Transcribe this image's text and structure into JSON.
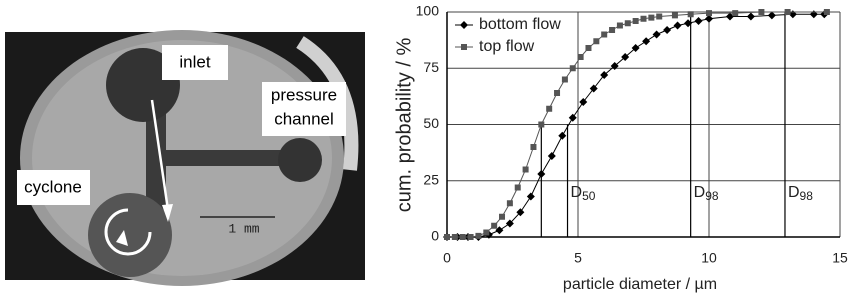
{
  "figure": {
    "labels": [
      "inlet",
      "pressure",
      "channel",
      "cyclone"
    ],
    "scale_bar": "1 mm"
  },
  "chart_data": {
    "type": "line",
    "y_label": "cum. probability / %",
    "x_label": "particle diameter / µm",
    "xlim": [
      0,
      15
    ],
    "xticks": [
      0,
      5,
      10,
      15
    ],
    "ylim": [
      0,
      100
    ],
    "yticks": [
      0,
      25,
      50,
      75,
      100
    ],
    "grid": true,
    "legend": "top-left",
    "series": [
      {
        "name": "bottom flow",
        "color": "#000000",
        "marker": "diamond",
        "x": [
          0,
          0.4,
          0.8,
          1.2,
          1.6,
          2.0,
          2.4,
          2.8,
          3.2,
          3.6,
          4.0,
          4.4,
          4.8,
          5.2,
          5.6,
          6.0,
          6.4,
          6.8,
          7.2,
          7.6,
          8.0,
          8.4,
          8.8,
          9.2,
          9.6,
          10.0,
          10.8,
          11.6,
          12.4,
          13.2,
          14.0,
          14.4
        ],
        "values": [
          0,
          0,
          0,
          0,
          1,
          3,
          6,
          11,
          18,
          28,
          36,
          45,
          53,
          60,
          66,
          72,
          76,
          80,
          84,
          87,
          90,
          92,
          94,
          95,
          96,
          97,
          98,
          98,
          98.5,
          99,
          99,
          99
        ]
      },
      {
        "name": "top flow",
        "color": "#555555",
        "marker": "square",
        "x": [
          0,
          0.3,
          0.6,
          0.9,
          1.2,
          1.5,
          1.8,
          2.1,
          2.4,
          2.7,
          3.0,
          3.3,
          3.6,
          3.9,
          4.2,
          4.5,
          4.8,
          5.1,
          5.4,
          5.7,
          6.0,
          6.3,
          6.6,
          6.9,
          7.2,
          7.5,
          7.8,
          8.1,
          8.7,
          9.3,
          10.0,
          11.0,
          12.0,
          13.0,
          14.5
        ],
        "values": [
          0,
          0,
          0,
          0,
          0.5,
          2,
          5,
          9,
          15,
          22,
          30,
          40,
          50,
          57,
          64,
          70,
          75,
          80,
          84,
          87,
          90,
          92,
          94,
          95,
          96,
          97,
          97.5,
          98,
          98.5,
          99,
          99.5,
          99.5,
          100,
          100,
          100
        ]
      }
    ],
    "reference_lines": [
      {
        "x": 3.6,
        "y": 50
      },
      {
        "x": 4.6,
        "y": 50
      },
      {
        "x": 9.3,
        "y": 100
      },
      {
        "x": 12.9,
        "y": 100
      }
    ],
    "annotations": [
      {
        "text": "D",
        "sub": "50"
      },
      {
        "text": "D",
        "sub": "98"
      },
      {
        "text": "D",
        "sub": "98"
      }
    ]
  }
}
